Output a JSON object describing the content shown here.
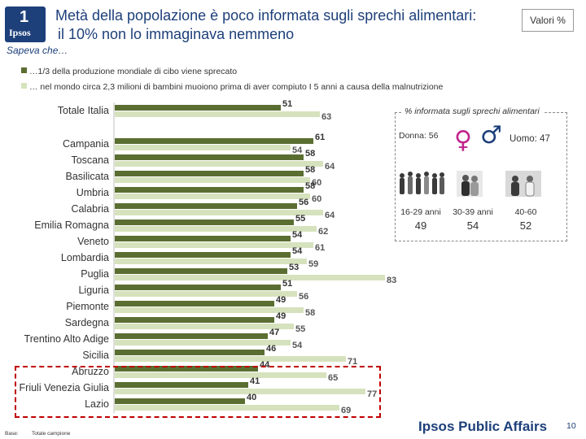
{
  "header": {
    "logo_number": "1",
    "logo_text": "Ipsos",
    "title_line1": "Metà della popolazione è poco informata sugli sprechi alimentari:",
    "title_line2": "il 10% non lo immaginava nemmeno",
    "valori": "Valori %"
  },
  "subtitle": "Sapeva che…",
  "colors": {
    "series1": "#5b6e32",
    "series2": "#d6e2bd",
    "accent": "#1d3f7a",
    "highlight": "#c00000"
  },
  "chart_data": {
    "type": "bar",
    "orientation": "horizontal",
    "categories": [
      "Totale Italia",
      "Campania",
      "Toscana",
      "Basilicata",
      "Umbria",
      "Calabria",
      "Emilia Romagna",
      "Veneto",
      "Lombardia",
      "Puglia",
      "Liguria",
      "Piemonte",
      "Sardegna",
      "Trentino Alto Adige",
      "Sicilia",
      "Abruzzo",
      "Friuli Venezia Giulia",
      "Lazio"
    ],
    "series": [
      {
        "name": "…1/3 della produzione mondiale di cibo viene sprecato",
        "values": [
          51,
          61,
          58,
          58,
          58,
          56,
          55,
          54,
          54,
          53,
          51,
          49,
          49,
          47,
          46,
          44,
          41,
          40
        ]
      },
      {
        "name": "… nel mondo circa 2,3 milioni di bambini muoiono prima di aver compiuto I 5 anni a causa della malnutrizione",
        "values": [
          63,
          54,
          64,
          60,
          60,
          64,
          62,
          61,
          59,
          83,
          56,
          58,
          55,
          54,
          71,
          65,
          77,
          69
        ]
      }
    ],
    "xlim": [
      0,
      100
    ],
    "legend": "top-left",
    "highlighted_categories": [
      "Abruzzo",
      "Friuli Venezia Giulia",
      "Lazio"
    ]
  },
  "inset": {
    "title": "% informata sugli sprechi alimentari",
    "female_label": "Donna: 56",
    "male_label": "Uomo: 47",
    "female_symbol": "♀",
    "male_symbol": "♂",
    "ages": [
      {
        "label": "16-29 anni",
        "value": "49"
      },
      {
        "label": "30-39 anni",
        "value": "54"
      },
      {
        "label": "40-60",
        "value": "52"
      }
    ]
  },
  "footer": {
    "brand": "Ipsos Public Affairs",
    "page": "10",
    "base_label": "Base:",
    "base_value": "Totale campione"
  }
}
